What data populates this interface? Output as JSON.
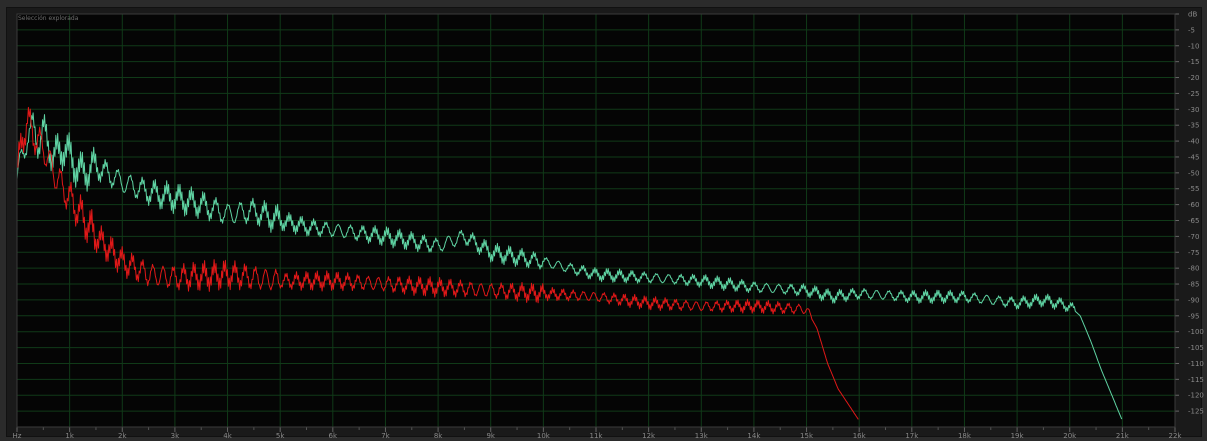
{
  "panel": {
    "label": "Selección explorada"
  },
  "chart_data": {
    "type": "line",
    "title": "",
    "xlabel": "",
    "ylabel": "",
    "x_unit": "Hz",
    "y_unit": "dB",
    "xlim": [
      0,
      22000
    ],
    "ylim": [
      -130,
      0
    ],
    "grid": true,
    "x_tick_labels": [
      "Hz",
      "1k",
      "2k",
      "3k",
      "4k",
      "5k",
      "6k",
      "7k",
      "8k",
      "9k",
      "10k",
      "11k",
      "12k",
      "13k",
      "14k",
      "15k",
      "16k",
      "17k",
      "18k",
      "19k",
      "20k",
      "21k",
      "22k"
    ],
    "x_tick_values": [
      0,
      1000,
      2000,
      3000,
      4000,
      5000,
      6000,
      7000,
      8000,
      9000,
      10000,
      11000,
      12000,
      13000,
      14000,
      15000,
      16000,
      17000,
      18000,
      19000,
      20000,
      21000,
      22000
    ],
    "y_tick_labels": [
      "dB",
      "-5",
      "-10",
      "-15",
      "-20",
      "-25",
      "-30",
      "-35",
      "-40",
      "-45",
      "-50",
      "-55",
      "-60",
      "-65",
      "-70",
      "-75",
      "-80",
      "-85",
      "-90",
      "-95",
      "-100",
      "-105",
      "-110",
      "-115",
      "-120",
      "-125"
    ],
    "y_tick_values": [
      0,
      -5,
      -10,
      -15,
      -20,
      -25,
      -30,
      -35,
      -40,
      -45,
      -50,
      -55,
      -60,
      -65,
      -70,
      -75,
      -80,
      -85,
      -90,
      -95,
      -100,
      -105,
      -110,
      -115,
      -120,
      -125
    ],
    "series": [
      {
        "color": "#5fd3a3",
        "x": [
          0,
          100,
          200,
          300,
          400,
          500,
          700,
          900,
          1200,
          1500,
          2000,
          2500,
          3000,
          3500,
          4000,
          4500,
          5000,
          5500,
          6000,
          7000,
          8000,
          8500,
          9000,
          10000,
          11000,
          12000,
          13000,
          14000,
          15000,
          15500,
          16000,
          17000,
          18000,
          19000,
          19500,
          20000,
          20200,
          20400,
          20600,
          20800,
          21000
        ],
        "y": [
          -52,
          -45,
          -38,
          -36,
          -40,
          -37,
          -45,
          -42,
          -50,
          -48,
          -53,
          -56,
          -58,
          -60,
          -63,
          -62,
          -65,
          -67,
          -68,
          -70,
          -73,
          -70,
          -75,
          -78,
          -82,
          -83,
          -84,
          -86,
          -87,
          -89,
          -88,
          -89,
          -89,
          -91,
          -90,
          -92,
          -95,
          -103,
          -112,
          -120,
          -128
        ]
      },
      {
        "color": "#e01818",
        "x": [
          0,
          100,
          200,
          300,
          500,
          700,
          1000,
          1500,
          2000,
          2500,
          3000,
          4000,
          5000,
          6000,
          7000,
          8000,
          9000,
          10000,
          11000,
          12000,
          13000,
          14000,
          15000,
          15200,
          15400,
          15600,
          15800,
          16000
        ],
        "y": [
          -50,
          -40,
          -33,
          -38,
          -42,
          -50,
          -58,
          -70,
          -78,
          -82,
          -83,
          -82,
          -84,
          -84,
          -85,
          -86,
          -87,
          -88,
          -89,
          -91,
          -92,
          -92,
          -93,
          -99,
          -110,
          -118,
          -123,
          -128
        ]
      }
    ]
  }
}
